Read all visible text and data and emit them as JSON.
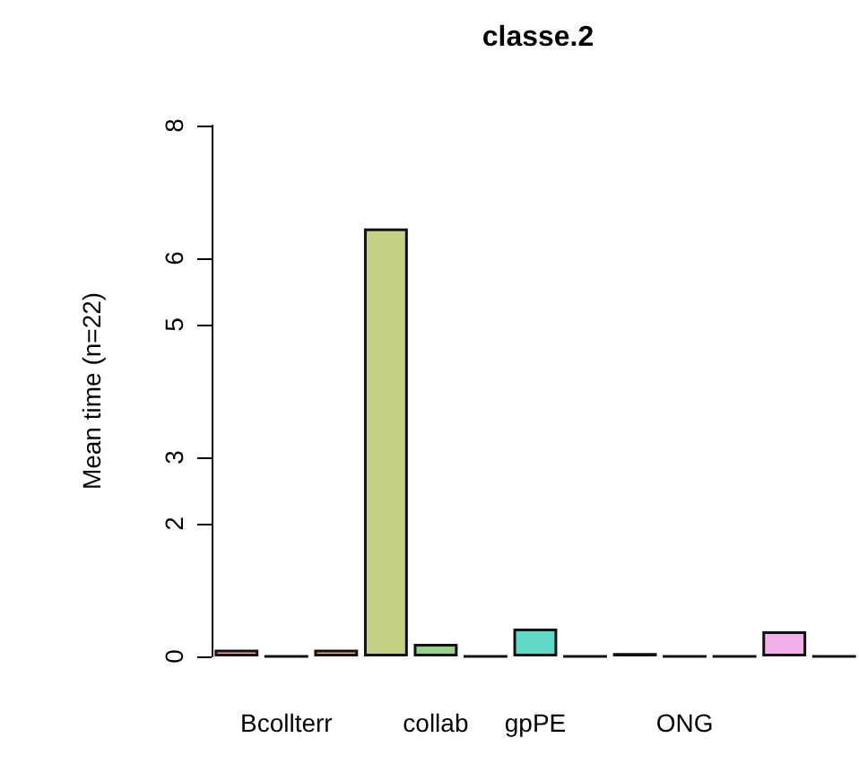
{
  "chart_data": {
    "type": "bar",
    "title": "classe.2",
    "ylabel": "Mean time (n=22)",
    "categories": [
      null,
      "Bcollterr",
      null,
      null,
      "collab",
      null,
      "gpPE",
      null,
      null,
      "ONG",
      null,
      null,
      null
    ],
    "values": [
      0.1,
      0,
      0.1,
      6.45,
      0.19,
      0,
      0.42,
      0,
      0.05,
      0,
      0,
      0.38,
      0
    ],
    "colors": [
      "#f4a0a8",
      "#111111",
      "#e0b46a",
      "#c4d084",
      "#98d08c",
      "#111111",
      "#60d8c8",
      "#111111",
      "#333333",
      "#111111",
      "#111111",
      "#f4b0ec",
      "#111111"
    ],
    "ylim": [
      0,
      8
    ],
    "yticks": [
      0,
      2,
      3,
      5,
      6,
      8
    ],
    "grid": false
  }
}
